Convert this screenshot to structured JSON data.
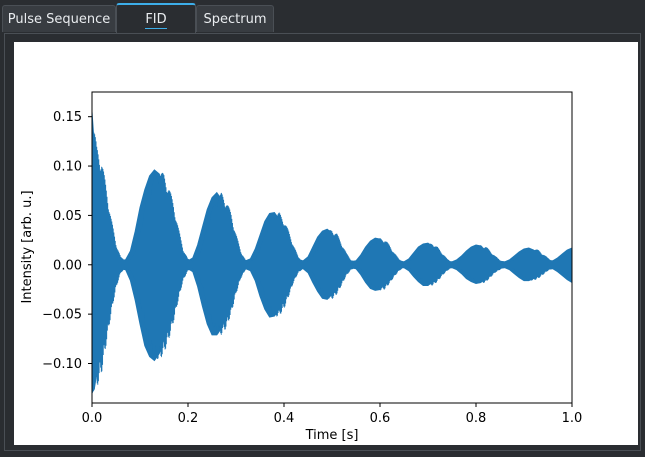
{
  "tabs": [
    {
      "label": "Pulse Sequence",
      "active": false
    },
    {
      "label": "FID",
      "active": true
    },
    {
      "label": "Spectrum",
      "active": false
    }
  ],
  "chart_data": {
    "type": "line",
    "title": "",
    "xlabel": "Time [s]",
    "ylabel": "Intensity [arb. u.]",
    "xlim": [
      0,
      1.0
    ],
    "ylim": [
      -0.14,
      0.175
    ],
    "xticks": [
      "0.0",
      "0.2",
      "0.4",
      "0.6",
      "0.8",
      "1.0"
    ],
    "yticks": [
      "−0.10",
      "−0.05",
      "0.00",
      "0.05",
      "0.10",
      "0.15"
    ],
    "grid": false,
    "color": "#1f77b4",
    "series": [
      {
        "name": "",
        "x": [
          0.0,
          0.005,
          0.01,
          0.02,
          0.03,
          0.04,
          0.05,
          0.06,
          0.07,
          0.08,
          0.09,
          0.1,
          0.11,
          0.12,
          0.13,
          0.14,
          0.15,
          0.16,
          0.17,
          0.18,
          0.19,
          0.2,
          0.21,
          0.22,
          0.23,
          0.24,
          0.25,
          0.26,
          0.27,
          0.28,
          0.29,
          0.3,
          0.31,
          0.32,
          0.33,
          0.34,
          0.35,
          0.36,
          0.37,
          0.38,
          0.39,
          0.4,
          0.41,
          0.42,
          0.43,
          0.44,
          0.45,
          0.46,
          0.47,
          0.48,
          0.49,
          0.5,
          0.51,
          0.52,
          0.53,
          0.54,
          0.55,
          0.56,
          0.57,
          0.58,
          0.59,
          0.6,
          0.61,
          0.62,
          0.63,
          0.64,
          0.65,
          0.66,
          0.67,
          0.68,
          0.69,
          0.7,
          0.71,
          0.72,
          0.73,
          0.74,
          0.75,
          0.76,
          0.77,
          0.78,
          0.79,
          0.8,
          0.81,
          0.82,
          0.83,
          0.84,
          0.85,
          0.86,
          0.87,
          0.88,
          0.89,
          0.9,
          0.91,
          0.92,
          0.93,
          0.94,
          0.95,
          0.96,
          0.97,
          0.98,
          0.99,
          1.0
        ],
        "upper": [
          0.155,
          0.12,
          0.108,
          0.078,
          0.048,
          0.022,
          0.008,
          0.004,
          0.005,
          0.014,
          0.034,
          0.058,
          0.076,
          0.09,
          0.096,
          0.092,
          0.08,
          0.062,
          0.038,
          0.016,
          0.006,
          0.004,
          0.007,
          0.02,
          0.038,
          0.056,
          0.068,
          0.073,
          0.066,
          0.052,
          0.032,
          0.014,
          0.005,
          0.004,
          0.006,
          0.016,
          0.03,
          0.044,
          0.052,
          0.053,
          0.046,
          0.034,
          0.02,
          0.008,
          0.004,
          0.004,
          0.008,
          0.018,
          0.028,
          0.034,
          0.036,
          0.032,
          0.022,
          0.012,
          0.005,
          0.003,
          0.004,
          0.01,
          0.018,
          0.024,
          0.027,
          0.026,
          0.02,
          0.012,
          0.006,
          0.003,
          0.003,
          0.006,
          0.012,
          0.018,
          0.021,
          0.022,
          0.018,
          0.012,
          0.006,
          0.003,
          0.003,
          0.005,
          0.009,
          0.014,
          0.018,
          0.02,
          0.019,
          0.014,
          0.009,
          0.005,
          0.003,
          0.003,
          0.005,
          0.009,
          0.013,
          0.016,
          0.017,
          0.015,
          0.011,
          0.007,
          0.004,
          0.004,
          0.007,
          0.011,
          0.015,
          0.017
        ],
        "lower": [
          -0.13,
          -0.125,
          -0.11,
          -0.08,
          -0.05,
          -0.024,
          -0.008,
          -0.004,
          -0.005,
          -0.016,
          -0.036,
          -0.06,
          -0.082,
          -0.093,
          -0.097,
          -0.09,
          -0.076,
          -0.058,
          -0.036,
          -0.016,
          -0.006,
          -0.004,
          -0.007,
          -0.022,
          -0.042,
          -0.06,
          -0.071,
          -0.071,
          -0.064,
          -0.05,
          -0.03,
          -0.014,
          -0.005,
          -0.004,
          -0.006,
          -0.016,
          -0.032,
          -0.045,
          -0.053,
          -0.052,
          -0.045,
          -0.032,
          -0.018,
          -0.008,
          -0.004,
          -0.004,
          -0.008,
          -0.018,
          -0.027,
          -0.034,
          -0.035,
          -0.03,
          -0.021,
          -0.011,
          -0.005,
          -0.003,
          -0.004,
          -0.01,
          -0.018,
          -0.024,
          -0.026,
          -0.025,
          -0.019,
          -0.012,
          -0.006,
          -0.003,
          -0.003,
          -0.006,
          -0.012,
          -0.017,
          -0.021,
          -0.021,
          -0.017,
          -0.011,
          -0.006,
          -0.003,
          -0.003,
          -0.005,
          -0.009,
          -0.014,
          -0.017,
          -0.019,
          -0.018,
          -0.013,
          -0.008,
          -0.005,
          -0.003,
          -0.003,
          -0.005,
          -0.009,
          -0.013,
          -0.016,
          -0.016,
          -0.014,
          -0.01,
          -0.006,
          -0.004,
          -0.004,
          -0.007,
          -0.011,
          -0.015,
          -0.018
        ]
      }
    ]
  }
}
